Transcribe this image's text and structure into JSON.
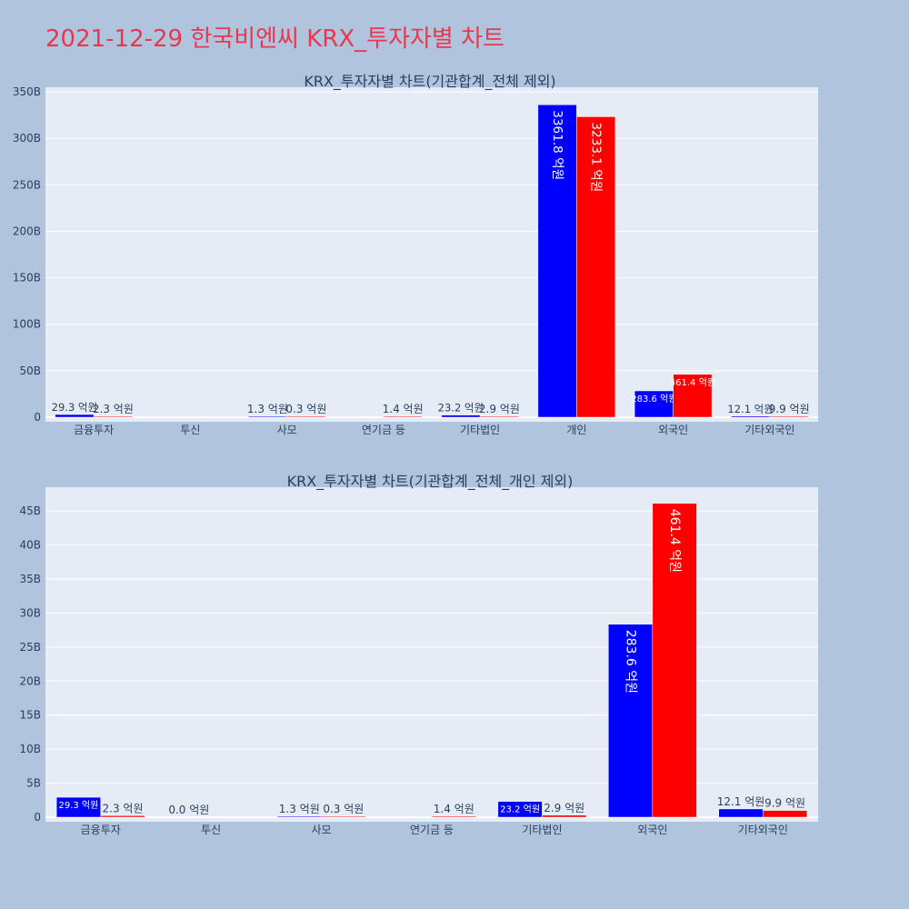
{
  "page_title": "2021-12-29 한국비엔씨 KRX_투자자별 차트",
  "colors": {
    "buy": "#0000ff",
    "sell": "#ff0000",
    "background": "#b0c4de",
    "plot_bg": "#e5ecf6",
    "title": "#e8384f"
  },
  "chart_data": [
    {
      "type": "bar",
      "title": "KRX_투자자별 차트(기관합계_전체 제외)",
      "categories": [
        "금융투자",
        "투신",
        "사모",
        "연기금 등",
        "기타법인",
        "개인",
        "외국인",
        "기타외국인"
      ],
      "y_ticks": [
        "0",
        "50B",
        "100B",
        "150B",
        "200B",
        "250B",
        "300B",
        "350B"
      ],
      "ylim": [
        0,
        355
      ],
      "y_unit": "B",
      "grid": true,
      "legend": "none",
      "series": [
        {
          "values": [
            2.93,
            0,
            0.13,
            0,
            2.32,
            336.18,
            28.36,
            1.21
          ],
          "labels": [
            "29.3 억원",
            "",
            "1.3 억원",
            "",
            "23.2 억원",
            "3361.8 억원",
            "283.6 억원",
            "12.1 억원"
          ]
        },
        {
          "values": [
            0.23,
            0,
            0.03,
            0.14,
            0.29,
            323.31,
            46.14,
            0.99
          ],
          "labels": [
            "2.3 억원",
            "",
            "0.3 억원",
            "1.4 억원",
            "2.9 억원",
            "3233.1 억원",
            "461.4 억원",
            "9.9 억원"
          ]
        }
      ]
    },
    {
      "type": "bar",
      "title": "KRX_투자자별 차트(기관합계_전체_개인 제외)",
      "categories": [
        "금융투자",
        "투신",
        "사모",
        "연기금 등",
        "기타법인",
        "외국인",
        "기타외국인"
      ],
      "y_ticks": [
        "0",
        "5B",
        "10B",
        "15B",
        "20B",
        "25B",
        "30B",
        "35B",
        "40B",
        "45B"
      ],
      "ylim": [
        0,
        48.5
      ],
      "y_unit": "B",
      "grid": true,
      "legend": "none",
      "series": [
        {
          "values": [
            2.93,
            0,
            0.13,
            0,
            2.32,
            28.36,
            1.21
          ],
          "labels": [
            "29.3 억원",
            "0.0 억원",
            "1.3 억원",
            "",
            "23.2 억원",
            "283.6 억원",
            "12.1 억원"
          ]
        },
        {
          "values": [
            0.23,
            0,
            0.03,
            0.14,
            0.29,
            46.14,
            0.99
          ],
          "labels": [
            "2.3 억원",
            "",
            "0.3 억원",
            "1.4 억원",
            "2.9 억원",
            "461.4 억원",
            "9.9 억원"
          ]
        }
      ]
    }
  ]
}
